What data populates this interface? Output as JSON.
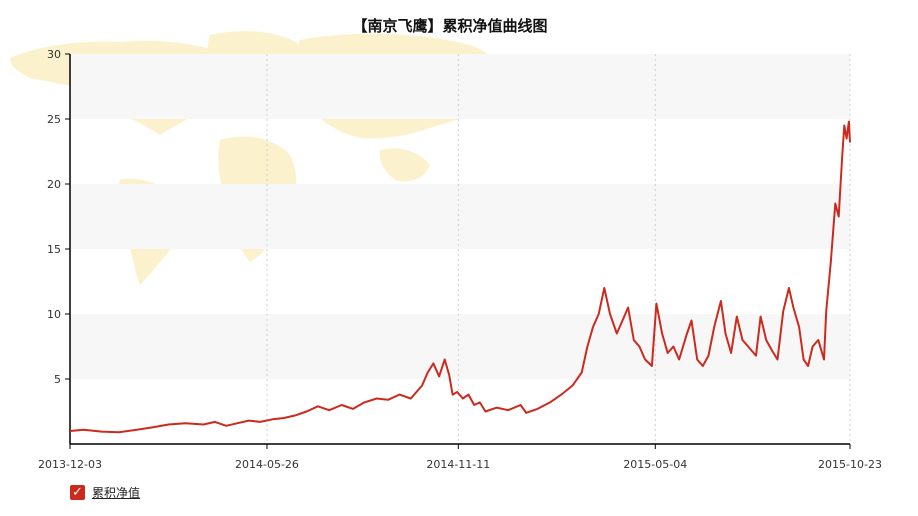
{
  "chart_data": {
    "type": "line",
    "title": "【南京飞鹰】累积净值曲线图",
    "x_tick_labels": [
      "2013-12-03",
      "2014-05-26",
      "2014-11-11",
      "2015-05-04",
      "2015-10-23"
    ],
    "x_range": [
      "2013-12-03",
      "2015-10-23"
    ],
    "ylim": [
      0,
      30
    ],
    "y_ticks": [
      5,
      10,
      15,
      20,
      25,
      30
    ],
    "grid": "horizontal bands and dotted vertical lines",
    "legend": "bottom-left",
    "series": [
      {
        "name": "累积净值",
        "color": "#cc2a1e",
        "points": [
          [
            "2013-12-03",
            1.0
          ],
          [
            "2013-12-15",
            1.1
          ],
          [
            "2013-12-31",
            0.95
          ],
          [
            "2014-01-15",
            0.9
          ],
          [
            "2014-01-31",
            1.1
          ],
          [
            "2014-02-15",
            1.3
          ],
          [
            "2014-02-28",
            1.5
          ],
          [
            "2014-03-15",
            1.6
          ],
          [
            "2014-03-31",
            1.5
          ],
          [
            "2014-04-10",
            1.7
          ],
          [
            "2014-04-20",
            1.4
          ],
          [
            "2014-04-30",
            1.6
          ],
          [
            "2014-05-10",
            1.8
          ],
          [
            "2014-05-20",
            1.7
          ],
          [
            "2014-05-31",
            1.9
          ],
          [
            "2014-06-10",
            2.0
          ],
          [
            "2014-06-20",
            2.2
          ],
          [
            "2014-06-30",
            2.5
          ],
          [
            "2014-07-10",
            2.9
          ],
          [
            "2014-07-20",
            2.6
          ],
          [
            "2014-07-31",
            3.0
          ],
          [
            "2014-08-10",
            2.7
          ],
          [
            "2014-08-20",
            3.2
          ],
          [
            "2014-08-31",
            3.5
          ],
          [
            "2014-09-10",
            3.4
          ],
          [
            "2014-09-20",
            3.8
          ],
          [
            "2014-09-30",
            3.5
          ],
          [
            "2014-10-10",
            4.5
          ],
          [
            "2014-10-15",
            5.5
          ],
          [
            "2014-10-20",
            6.2
          ],
          [
            "2014-10-25",
            5.2
          ],
          [
            "2014-10-30",
            6.5
          ],
          [
            "2014-11-03",
            5.3
          ],
          [
            "2014-11-06",
            3.8
          ],
          [
            "2014-11-10",
            4.0
          ],
          [
            "2014-11-15",
            3.5
          ],
          [
            "2014-11-20",
            3.8
          ],
          [
            "2014-11-25",
            3.0
          ],
          [
            "2014-11-30",
            3.2
          ],
          [
            "2014-12-05",
            2.5
          ],
          [
            "2014-12-15",
            2.8
          ],
          [
            "2014-12-25",
            2.6
          ],
          [
            "2015-01-05",
            3.0
          ],
          [
            "2015-01-10",
            2.4
          ],
          [
            "2015-01-20",
            2.7
          ],
          [
            "2015-01-31",
            3.2
          ],
          [
            "2015-02-10",
            3.8
          ],
          [
            "2015-02-20",
            4.5
          ],
          [
            "2015-02-28",
            5.5
          ],
          [
            "2015-03-05",
            7.5
          ],
          [
            "2015-03-10",
            9.0
          ],
          [
            "2015-03-15",
            10.0
          ],
          [
            "2015-03-20",
            12.0
          ],
          [
            "2015-03-25",
            10.0
          ],
          [
            "2015-03-31",
            8.5
          ],
          [
            "2015-04-05",
            9.5
          ],
          [
            "2015-04-10",
            10.5
          ],
          [
            "2015-04-15",
            8.0
          ],
          [
            "2015-04-20",
            7.5
          ],
          [
            "2015-04-25",
            6.5
          ],
          [
            "2015-05-01",
            6.0
          ],
          [
            "2015-05-05",
            10.8
          ],
          [
            "2015-05-10",
            8.5
          ],
          [
            "2015-05-15",
            7.0
          ],
          [
            "2015-05-20",
            7.5
          ],
          [
            "2015-05-25",
            6.5
          ],
          [
            "2015-06-01",
            8.5
          ],
          [
            "2015-06-05",
            9.5
          ],
          [
            "2015-06-10",
            6.5
          ],
          [
            "2015-06-15",
            6.0
          ],
          [
            "2015-06-20",
            6.8
          ],
          [
            "2015-06-25",
            9.0
          ],
          [
            "2015-07-01",
            11.0
          ],
          [
            "2015-07-05",
            8.5
          ],
          [
            "2015-07-10",
            7.0
          ],
          [
            "2015-07-15",
            9.8
          ],
          [
            "2015-07-20",
            8.0
          ],
          [
            "2015-07-25",
            7.5
          ],
          [
            "2015-08-01",
            6.8
          ],
          [
            "2015-08-05",
            9.8
          ],
          [
            "2015-08-10",
            8.0
          ],
          [
            "2015-08-15",
            7.2
          ],
          [
            "2015-08-20",
            6.5
          ],
          [
            "2015-08-25",
            10.2
          ],
          [
            "2015-08-30",
            12.0
          ],
          [
            "2015-09-03",
            10.5
          ],
          [
            "2015-09-08",
            9.0
          ],
          [
            "2015-09-12",
            6.5
          ],
          [
            "2015-09-16",
            6.0
          ],
          [
            "2015-09-20",
            7.5
          ],
          [
            "2015-09-25",
            8.0
          ],
          [
            "2015-09-30",
            6.5
          ],
          [
            "2015-10-02",
            10.2
          ],
          [
            "2015-10-06",
            14.0
          ],
          [
            "2015-10-10",
            18.5
          ],
          [
            "2015-10-13",
            17.5
          ],
          [
            "2015-10-16",
            22.0
          ],
          [
            "2015-10-18",
            24.5
          ],
          [
            "2015-10-20",
            23.5
          ],
          [
            "2015-10-22",
            24.8
          ],
          [
            "2015-10-23",
            23.2
          ]
        ]
      }
    ]
  },
  "legend": {
    "check_glyph": "✓",
    "label": "累积净值"
  }
}
